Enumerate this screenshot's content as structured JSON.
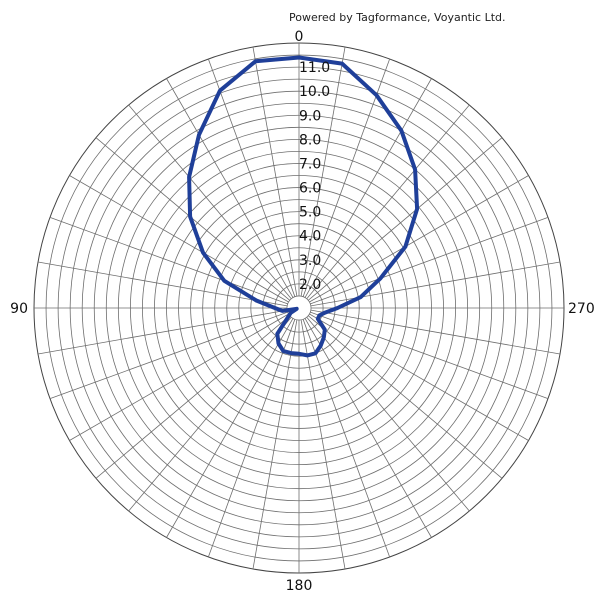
{
  "watermark": "Powered by Tagformance, Voyantic Ltd.",
  "chart_data": {
    "type": "line",
    "title": "",
    "polar": true,
    "angle_direction": "counterclockwise",
    "zero_at": "top",
    "angle_labels": [
      "0",
      "90",
      "180",
      "270"
    ],
    "angle_label_values": [
      0,
      90,
      180,
      270
    ],
    "spoke_step_deg": 10,
    "r_min": 1.0,
    "r_max": 12.0,
    "r_step": 0.5,
    "ring_labels": [
      "2.0",
      "3.0",
      "4.0",
      "5.0",
      "6.0",
      "7.0",
      "8.0",
      "9.0",
      "10.0",
      "11.0"
    ],
    "ring_label_values": [
      2,
      3,
      4,
      5,
      6,
      7,
      8,
      9,
      10,
      11
    ],
    "series": [
      {
        "color": "#1f3f99",
        "angles": [
          0,
          10,
          20,
          30,
          40,
          50,
          60,
          70,
          80,
          90,
          100,
          110,
          120,
          130,
          140,
          150,
          160,
          170,
          180,
          190,
          200,
          210,
          220,
          230,
          240,
          250,
          260,
          270,
          280,
          290,
          300,
          310,
          320,
          330,
          340,
          350,
          360
        ],
        "values": [
          11.4,
          11.4,
          10.6,
          9.3,
          8.1,
          6.9,
          5.6,
          4.3,
          2.8,
          2.0,
          1.7,
          1.1,
          1.4,
          1.6,
          2.4,
          2.7,
          2.9,
          2.9,
          2.9,
          3.0,
          3.0,
          2.8,
          2.6,
          2.4,
          1.9,
          1.9,
          2.1,
          2.6,
          3.6,
          4.6,
          6.1,
          7.4,
          8.5,
          9.5,
          10.4,
          11.3,
          11.4
        ]
      }
    ]
  }
}
